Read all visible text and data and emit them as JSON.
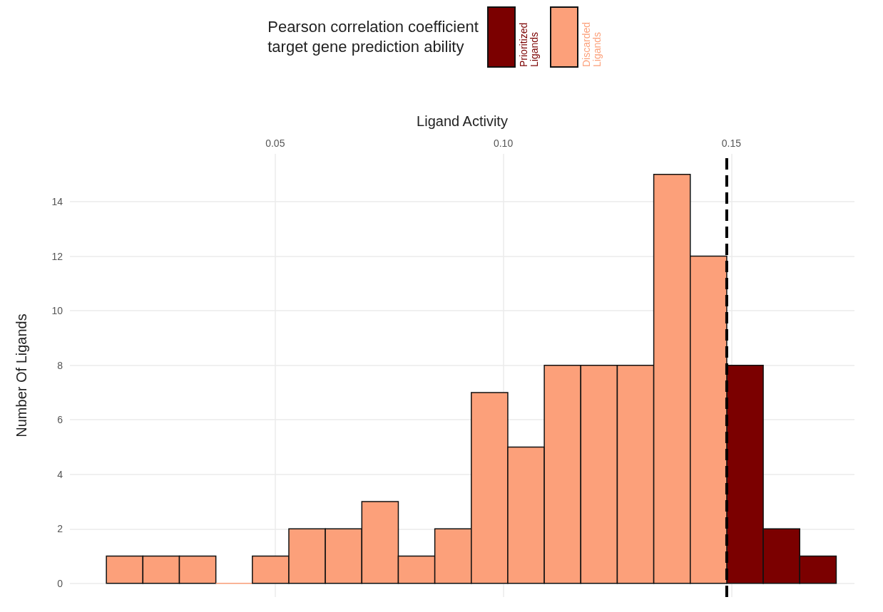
{
  "chart_data": {
    "type": "histogram",
    "xlabel": "Ligand Activity",
    "ylabel": "Number Of Ligands",
    "legend_title": "Pearson correlation coefficient\ntarget gene prediction ability",
    "legend": "top",
    "bins": [
      0.013,
      0.021,
      0.029,
      0.037,
      0.045,
      0.053,
      0.061,
      0.069,
      0.077,
      0.085,
      0.093,
      0.101,
      0.109,
      0.117,
      0.125,
      0.133,
      0.141,
      0.149,
      0.157,
      0.165,
      0.173
    ],
    "series": [
      {
        "name": "Prioritized Ligands",
        "color": "#7b0000",
        "values": [
          null,
          null,
          null,
          null,
          null,
          null,
          null,
          null,
          null,
          null,
          null,
          null,
          null,
          null,
          null,
          null,
          null,
          8,
          2,
          1
        ]
      },
      {
        "name": "Discarded Ligands",
        "color": "#fca07a",
        "values": [
          1,
          1,
          1,
          0,
          1,
          2,
          2,
          3,
          1,
          2,
          7,
          5,
          8,
          8,
          8,
          15,
          12,
          null,
          null,
          null
        ]
      }
    ],
    "xlim": [
      0.005,
      0.177
    ],
    "xticks": [
      {
        "value": 0.05,
        "label": "0.05"
      },
      {
        "value": 0.1,
        "label": "0.10"
      },
      {
        "value": 0.15,
        "label": "0.15"
      }
    ],
    "ylim": [
      -0.5,
      15.75
    ],
    "yticks": [
      0,
      2,
      4,
      6,
      8,
      10,
      12,
      14
    ],
    "grid": true,
    "ref_lines": [
      {
        "axis": "x",
        "value": 0.149,
        "label": null,
        "color": "#000000",
        "line_style": "dashed"
      }
    ]
  }
}
